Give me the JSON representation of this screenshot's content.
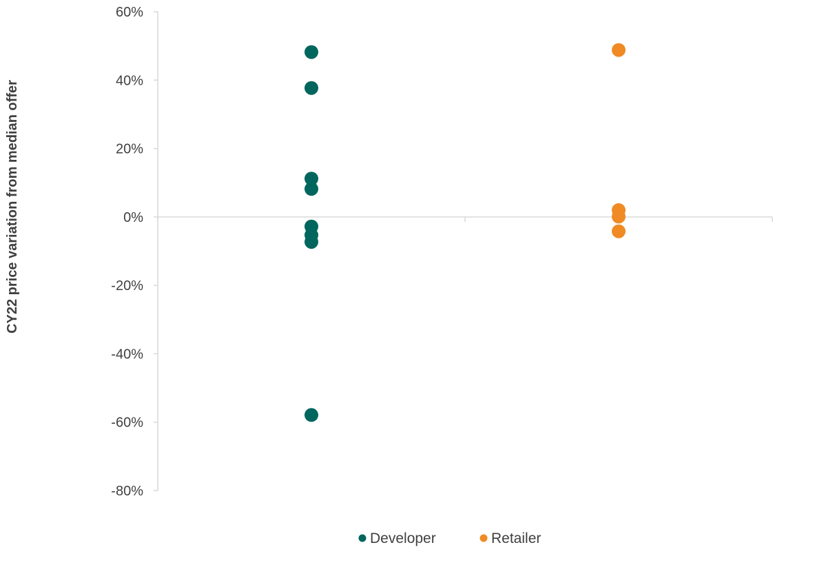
{
  "chart_data": {
    "type": "scatter",
    "title": "",
    "xlabel": "",
    "ylabel": "CY22 price variation from median offer",
    "ylim": [
      -80,
      60
    ],
    "y_ticks": [
      60,
      40,
      20,
      0,
      -20,
      -40,
      -60,
      -80
    ],
    "y_tick_labels": [
      "60%",
      "40%",
      "20%",
      "0%",
      "-20%",
      "-40%",
      "-60%",
      "-80%"
    ],
    "categories": [
      "Developer",
      "Retailer"
    ],
    "legend_position": "bottom",
    "grid": false,
    "series": [
      {
        "name": "Developer",
        "color": "#00665E",
        "category_index": 0,
        "values": [
          48.2,
          37.7,
          11.2,
          8.2,
          -2.8,
          -5.3,
          -7.3,
          -57.9
        ]
      },
      {
        "name": "Retailer",
        "color": "#F08A24",
        "category_index": 1,
        "values": [
          48.8,
          2.0,
          0.1,
          -4.2
        ]
      }
    ]
  }
}
